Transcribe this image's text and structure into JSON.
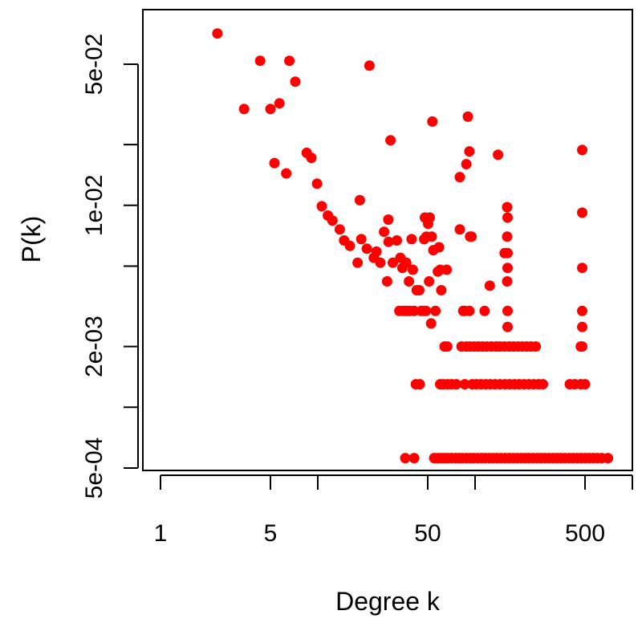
{
  "chart_data": {
    "type": "scatter",
    "title": "",
    "xlabel": "Degree k",
    "ylabel": "P(k)",
    "xscale": "log",
    "yscale": "log",
    "xlim": [
      0.78,
      1000
    ],
    "ylim": [
      0.00049,
      0.092
    ],
    "grid": false,
    "legend": null,
    "marker_color": "#ff0000",
    "x_ticks": [
      {
        "value": 1,
        "label": "1"
      },
      {
        "value": 5,
        "label": "5"
      },
      {
        "value": 10,
        "label": ""
      },
      {
        "value": 50,
        "label": "50"
      },
      {
        "value": 100,
        "label": ""
      },
      {
        "value": 500,
        "label": "500"
      },
      {
        "value": 1000,
        "label": ""
      }
    ],
    "y_ticks": [
      {
        "value": 0.05,
        "label": "5e-02"
      },
      {
        "value": 0.02,
        "label": ""
      },
      {
        "value": 0.01,
        "label": "1e-02"
      },
      {
        "value": 0.005,
        "label": ""
      },
      {
        "value": 0.002,
        "label": "2e-03"
      },
      {
        "value": 0.001,
        "label": ""
      },
      {
        "value": 0.0005,
        "label": "5e-04"
      }
    ],
    "points": [
      [
        2.3,
        0.071
      ],
      [
        3.4,
        0.03
      ],
      [
        4.3,
        0.052
      ],
      [
        5.0,
        0.03
      ],
      [
        5.7,
        0.032
      ],
      [
        6.6,
        0.052
      ],
      [
        7.2,
        0.041
      ],
      [
        5.3,
        0.0162
      ],
      [
        6.3,
        0.0144
      ],
      [
        8.5,
        0.0182
      ],
      [
        9.1,
        0.0172
      ],
      [
        9.9,
        0.0128
      ],
      [
        10.6,
        0.0099
      ],
      [
        11.6,
        0.0089
      ],
      [
        12.4,
        0.0084
      ],
      [
        13.8,
        0.0076
      ],
      [
        14.7,
        0.0067
      ],
      [
        16.0,
        0.0063
      ],
      [
        17.9,
        0.0052
      ],
      [
        18.5,
        0.0106
      ],
      [
        18.9,
        0.0068
      ],
      [
        20.5,
        0.0061
      ],
      [
        22.7,
        0.0055
      ],
      [
        23.6,
        0.0059
      ],
      [
        25.0,
        0.0052
      ],
      [
        27.6,
        0.0042
      ],
      [
        30.0,
        0.0052
      ],
      [
        29.0,
        0.021
      ],
      [
        21.3,
        0.0492
      ],
      [
        26.4,
        0.0074
      ],
      [
        28.1,
        0.0085
      ],
      [
        28.2,
        0.0066
      ],
      [
        31.8,
        0.0067
      ],
      [
        33.5,
        0.0055
      ],
      [
        34.5,
        0.0049
      ],
      [
        36.5,
        0.0052
      ],
      [
        38.0,
        0.0042
      ],
      [
        40.2,
        0.0048
      ],
      [
        42.5,
        0.0038
      ],
      [
        44.2,
        0.0038
      ],
      [
        45.5,
        0.003
      ],
      [
        48.7,
        0.003
      ],
      [
        51.0,
        0.0042
      ],
      [
        48.0,
        0.0087
      ],
      [
        51.5,
        0.0087
      ],
      [
        50.3,
        0.0081
      ],
      [
        49.0,
        0.007
      ],
      [
        54.3,
        0.006
      ],
      [
        58.0,
        0.0047
      ],
      [
        60.0,
        0.0048
      ],
      [
        61.0,
        0.0038
      ],
      [
        66.0,
        0.0048
      ],
      [
        53.0,
        0.007
      ],
      [
        47.5,
        0.0068
      ],
      [
        39.5,
        0.0068
      ],
      [
        59.0,
        0.0062
      ],
      [
        53.5,
        0.026
      ],
      [
        47.5,
        0.003
      ],
      [
        52.5,
        0.0026
      ],
      [
        33.0,
        0.003
      ],
      [
        35.0,
        0.003
      ],
      [
        36.5,
        0.003
      ],
      [
        38.5,
        0.003
      ],
      [
        41.0,
        0.003
      ],
      [
        56.0,
        0.003
      ],
      [
        64.0,
        0.002
      ],
      [
        66.5,
        0.002
      ],
      [
        82.0,
        0.002
      ],
      [
        88.0,
        0.002
      ],
      [
        93.0,
        0.002
      ],
      [
        99.0,
        0.002
      ],
      [
        105.0,
        0.002
      ],
      [
        112.0,
        0.002
      ],
      [
        119.0,
        0.002
      ],
      [
        127.0,
        0.002
      ],
      [
        136.0,
        0.002
      ],
      [
        144.0,
        0.002
      ],
      [
        154.0,
        0.002
      ],
      [
        165.0,
        0.002
      ],
      [
        176.0,
        0.002
      ],
      [
        188.0,
        0.002
      ],
      [
        200.0,
        0.002
      ],
      [
        213.0,
        0.002
      ],
      [
        227.0,
        0.002
      ],
      [
        243.0,
        0.002
      ],
      [
        470.0,
        0.002
      ],
      [
        42.0,
        0.0013
      ],
      [
        44.5,
        0.0013
      ],
      [
        60.0,
        0.0013
      ],
      [
        63.0,
        0.0013
      ],
      [
        67.0,
        0.0013
      ],
      [
        71.0,
        0.0013
      ],
      [
        76.0,
        0.0013
      ],
      [
        86.0,
        0.0013
      ],
      [
        96.0,
        0.0013
      ],
      [
        102.0,
        0.0013
      ],
      [
        109.0,
        0.0013
      ],
      [
        117.0,
        0.0013
      ],
      [
        125.0,
        0.0013
      ],
      [
        134.0,
        0.0013
      ],
      [
        144.0,
        0.0013
      ],
      [
        155.0,
        0.0013
      ],
      [
        166.0,
        0.0013
      ],
      [
        178.0,
        0.0013
      ],
      [
        191.0,
        0.0013
      ],
      [
        205.0,
        0.0013
      ],
      [
        220.0,
        0.0013
      ],
      [
        236.0,
        0.0013
      ],
      [
        253.0,
        0.0013
      ],
      [
        270.0,
        0.0013
      ],
      [
        400.0,
        0.0013
      ],
      [
        430.0,
        0.0013
      ],
      [
        470.0,
        0.0013
      ],
      [
        500.0,
        0.0013
      ],
      [
        36.0,
        0.00056
      ],
      [
        41.0,
        0.00056
      ],
      [
        55.0,
        0.00056
      ],
      [
        58.0,
        0.00056
      ],
      [
        61.0,
        0.00056
      ],
      [
        64.0,
        0.00056
      ],
      [
        67.0,
        0.00056
      ],
      [
        71.0,
        0.00056
      ],
      [
        75.0,
        0.00056
      ],
      [
        79.0,
        0.00056
      ],
      [
        83.0,
        0.00056
      ],
      [
        88.0,
        0.00056
      ],
      [
        93.0,
        0.00056
      ],
      [
        98.0,
        0.00056
      ],
      [
        104.0,
        0.00056
      ],
      [
        110.0,
        0.00056
      ],
      [
        116.0,
        0.00056
      ],
      [
        123.0,
        0.00056
      ],
      [
        130.0,
        0.00056
      ],
      [
        138.0,
        0.00056
      ],
      [
        146.0,
        0.00056
      ],
      [
        155.0,
        0.00056
      ],
      [
        165.0,
        0.00056
      ],
      [
        175.0,
        0.00056
      ],
      [
        185.0,
        0.00056
      ],
      [
        196.0,
        0.00056
      ],
      [
        208.0,
        0.00056
      ],
      [
        220.0,
        0.00056
      ],
      [
        233.0,
        0.00056
      ],
      [
        247.0,
        0.00056
      ],
      [
        262.0,
        0.00056
      ],
      [
        278.0,
        0.00056
      ],
      [
        295.0,
        0.00056
      ],
      [
        313.0,
        0.00056
      ],
      [
        332.0,
        0.00056
      ],
      [
        352.0,
        0.00056
      ],
      [
        373.0,
        0.00056
      ],
      [
        396.0,
        0.00056
      ],
      [
        420.0,
        0.00056
      ],
      [
        446.0,
        0.00056
      ],
      [
        473.0,
        0.00056
      ],
      [
        502.0,
        0.00056
      ],
      [
        532.0,
        0.00056
      ],
      [
        565.0,
        0.00056
      ],
      [
        600.0,
        0.00056
      ],
      [
        640.0,
        0.00056
      ],
      [
        700.0,
        0.00056
      ],
      [
        90.0,
        0.0275
      ],
      [
        92.0,
        0.0185
      ],
      [
        88.0,
        0.016
      ],
      [
        80.0,
        0.0138
      ],
      [
        140.0,
        0.0178
      ],
      [
        93.0,
        0.007
      ],
      [
        95.0,
        0.007
      ],
      [
        80.0,
        0.0076
      ],
      [
        84.0,
        0.003
      ],
      [
        86.0,
        0.003
      ],
      [
        115.0,
        0.003
      ],
      [
        92.0,
        0.003
      ],
      [
        124.0,
        0.004
      ],
      [
        160.0,
        0.0098
      ],
      [
        161.0,
        0.0087
      ],
      [
        160.0,
        0.007
      ],
      [
        154.0,
        0.0058
      ],
      [
        161.0,
        0.0058
      ],
      [
        161.0,
        0.0049
      ],
      [
        160.0,
        0.0042
      ],
      [
        161.0,
        0.003
      ],
      [
        161.0,
        0.0025
      ],
      [
        480.0,
        0.0188
      ],
      [
        480.0,
        0.0092
      ],
      [
        480.0,
        0.0049
      ],
      [
        480.0,
        0.003
      ],
      [
        480.0,
        0.0025
      ],
      [
        480.0,
        0.002
      ]
    ]
  },
  "labels": {
    "x_axis_title": "Degree k",
    "y_axis_title": "P(k)"
  }
}
